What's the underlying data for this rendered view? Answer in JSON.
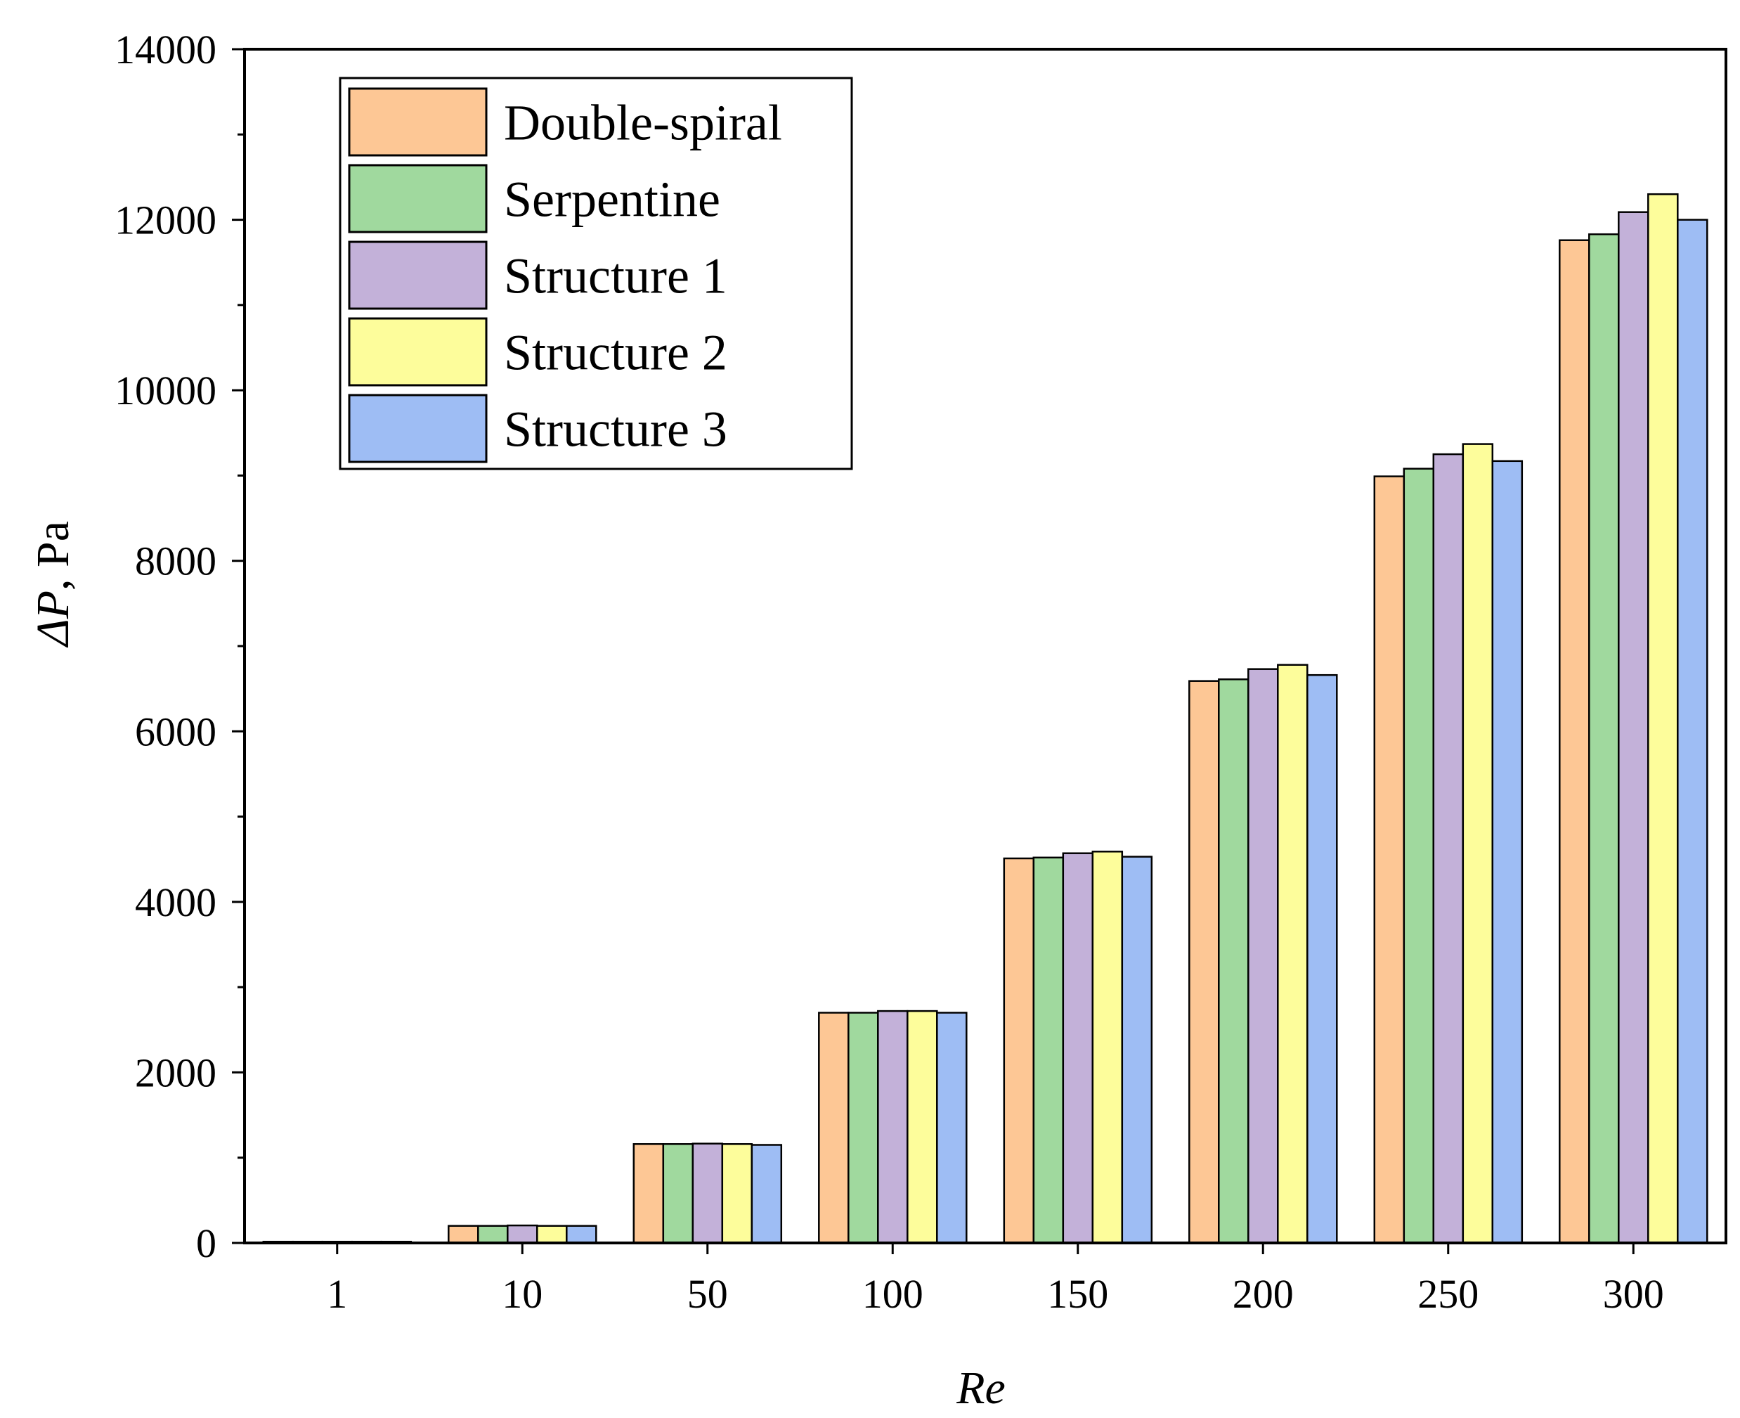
{
  "chart_data": {
    "type": "bar",
    "title": "",
    "xlabel": "Re",
    "ylabel_italic": "ΔP",
    "ylabel_rest": ", Pa",
    "categories": [
      "1",
      "10",
      "50",
      "100",
      "150",
      "200",
      "250",
      "300"
    ],
    "ylim": [
      0,
      14000
    ],
    "yticks": [
      0,
      2000,
      4000,
      6000,
      8000,
      10000,
      12000,
      14000
    ],
    "yticks_labels": [
      "0",
      "2000",
      "4000",
      "6000",
      "8000",
      "10000",
      "12000",
      "14000"
    ],
    "minor_y_step": 1000,
    "grid": false,
    "legend_position": "top-left",
    "series": [
      {
        "name": "Double-spiral",
        "color": "#FDC795",
        "values": [
          15,
          200,
          1160,
          2700,
          4510,
          6590,
          8990,
          11760
        ]
      },
      {
        "name": "Serpentine",
        "color": "#A0D99E",
        "values": [
          15,
          200,
          1160,
          2700,
          4520,
          6610,
          9080,
          11830
        ]
      },
      {
        "name": "Structure 1",
        "color": "#C3B1D9",
        "values": [
          15,
          205,
          1165,
          2720,
          4570,
          6730,
          9250,
          12090
        ]
      },
      {
        "name": "Structure 2",
        "color": "#FDFD9B",
        "values": [
          15,
          200,
          1160,
          2720,
          4590,
          6780,
          9370,
          12300
        ]
      },
      {
        "name": "Structure 3",
        "color": "#9EBDF4",
        "values": [
          15,
          200,
          1150,
          2700,
          4530,
          6660,
          9170,
          12000
        ]
      }
    ]
  }
}
